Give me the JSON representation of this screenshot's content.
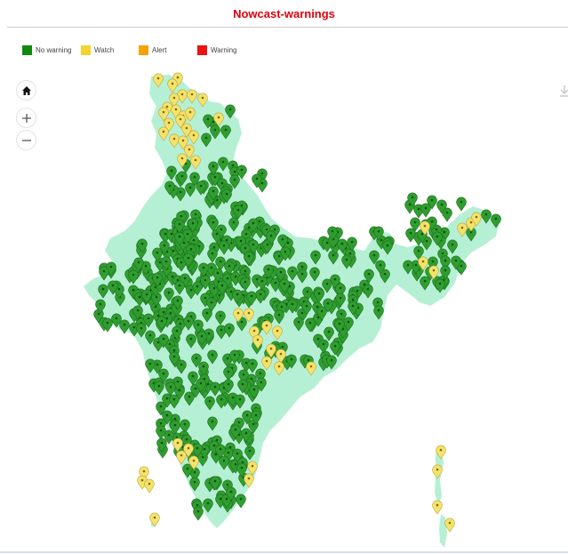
{
  "header": {
    "title": "Nowcast-warnings"
  },
  "legend": {
    "items": [
      {
        "label": "No warning",
        "color": "#0f8a0f"
      },
      {
        "label": "Watch",
        "color": "#f5d22e"
      },
      {
        "label": "Alert",
        "color": "#f5a300"
      },
      {
        "label": "Warning",
        "color": "#ee1111"
      }
    ]
  },
  "controls": {
    "home_icon": "home-icon",
    "zoom_in_icon": "plus-icon",
    "zoom_out_icon": "minus-icon",
    "download_icon": "download-icon"
  },
  "map": {
    "land_color": "#b5f0d5",
    "marker_colors": {
      "no_warning": "#2f9e2f",
      "watch": "#f5e26a"
    }
  }
}
